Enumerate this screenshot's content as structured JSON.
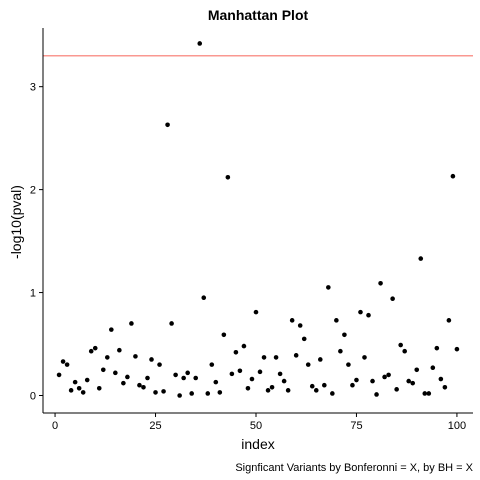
{
  "chart_data": {
    "type": "scatter",
    "title": "Manhattan Plot",
    "xlabel": "index",
    "ylabel": "-log10(pval)",
    "caption": "Signficant Variants by Bonferonni = X, by BH = X",
    "xlim": [
      -3,
      104
    ],
    "ylim": [
      -0.17,
      3.57
    ],
    "xticks": [
      0,
      25,
      50,
      75,
      100
    ],
    "yticks": [
      0,
      1,
      2,
      3
    ],
    "grid": false,
    "legend": "none",
    "threshold": 3.3,
    "threshold_color": "#f8766d",
    "point_color": "#000000",
    "x": [
      1,
      2,
      3,
      4,
      5,
      6,
      7,
      8,
      9,
      10,
      11,
      12,
      13,
      14,
      15,
      16,
      17,
      18,
      19,
      20,
      21,
      22,
      23,
      24,
      25,
      26,
      27,
      28,
      29,
      30,
      31,
      32,
      33,
      34,
      35,
      36,
      37,
      38,
      39,
      40,
      41,
      42,
      43,
      44,
      45,
      46,
      47,
      48,
      49,
      50,
      51,
      52,
      53,
      54,
      55,
      56,
      57,
      58,
      59,
      60,
      61,
      62,
      63,
      64,
      65,
      66,
      67,
      68,
      69,
      70,
      71,
      72,
      73,
      74,
      75,
      76,
      77,
      78,
      79,
      80,
      81,
      82,
      83,
      84,
      85,
      86,
      87,
      88,
      89,
      90,
      91,
      92,
      93,
      94,
      95,
      96,
      97,
      98,
      99,
      100
    ],
    "y": [
      0.2,
      0.33,
      0.3,
      0.05,
      0.13,
      0.07,
      0.03,
      0.15,
      0.43,
      0.46,
      0.07,
      0.25,
      0.37,
      0.64,
      0.22,
      0.44,
      0.12,
      0.18,
      0.7,
      0.38,
      0.1,
      0.08,
      0.17,
      0.35,
      0.03,
      0.3,
      0.04,
      2.63,
      0.7,
      0.2,
      0.0,
      0.17,
      0.22,
      0.02,
      0.17,
      3.42,
      0.95,
      0.02,
      0.3,
      0.13,
      0.03,
      0.59,
      2.12,
      0.21,
      0.42,
      0.24,
      0.48,
      0.07,
      0.16,
      0.81,
      0.23,
      0.37,
      0.05,
      0.08,
      0.37,
      0.21,
      0.14,
      0.05,
      0.73,
      0.39,
      0.68,
      0.55,
      0.3,
      0.09,
      0.05,
      0.35,
      0.1,
      1.05,
      0.02,
      0.73,
      0.43,
      0.59,
      0.3,
      0.1,
      0.15,
      0.81,
      0.37,
      0.78,
      0.14,
      0.01,
      1.09,
      0.18,
      0.2,
      0.94,
      0.06,
      0.49,
      0.43,
      0.14,
      0.12,
      0.25,
      1.33,
      0.02,
      0.02,
      0.27,
      0.46,
      0.16,
      0.08,
      0.73,
      2.13,
      0.45
    ]
  }
}
